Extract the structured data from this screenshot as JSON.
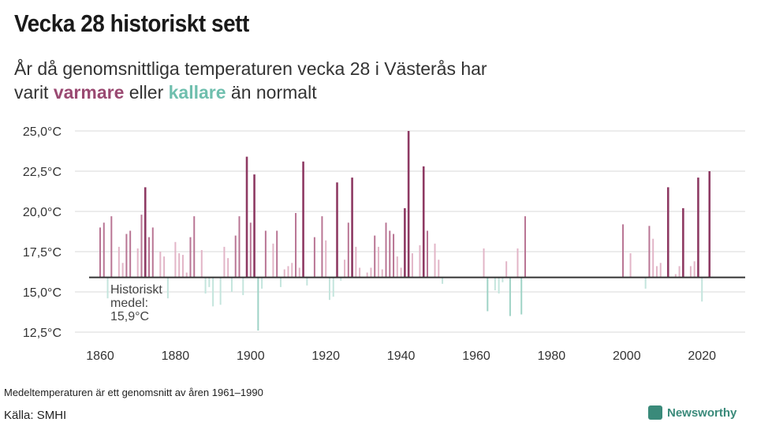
{
  "title": "Vecka 28 historiskt sett",
  "subtitle": {
    "line1": "År då genomsnittliga temperaturen vecka 28 i Västerås har",
    "pre": "varit ",
    "warm": "varmare",
    "mid": " eller ",
    "cold": "kallare",
    "post": " än normalt"
  },
  "note": "Medeltemperaturen är ett genomsnitt av åren 1961–1990",
  "source": "Källa: SMHI",
  "logo": "Newsworthy",
  "colors": {
    "warm": "#8e3a63",
    "warm_light": "#e2b5c7",
    "cold": "#8fcfc0",
    "baseline": "#333333"
  },
  "chart_data": {
    "type": "bar",
    "title": "",
    "xlabel": "",
    "ylabel": "",
    "baseline": 15.9,
    "baseline_label": [
      "Historiskt",
      "medel:",
      "15,9°C"
    ],
    "ylim": [
      12.5,
      25
    ],
    "yticks": [
      "12,5°C",
      "15,0°C",
      "17,5°C",
      "20,0°C",
      "22,5°C",
      "25,0°C"
    ],
    "ytick_values": [
      12.5,
      15,
      17.5,
      20,
      22.5,
      25
    ],
    "xticks": [
      1860,
      1880,
      1900,
      1920,
      1940,
      1960,
      1980,
      2000,
      2020
    ],
    "grid": true,
    "x": [
      1860,
      1861,
      1862,
      1863,
      1865,
      1866,
      1867,
      1868,
      1870,
      1871,
      1872,
      1873,
      1874,
      1876,
      1877,
      1878,
      1880,
      1881,
      1882,
      1883,
      1884,
      1885,
      1887,
      1888,
      1889,
      1890,
      1892,
      1893,
      1894,
      1895,
      1896,
      1897,
      1898,
      1899,
      1900,
      1901,
      1902,
      1903,
      1904,
      1906,
      1907,
      1908,
      1909,
      1910,
      1911,
      1912,
      1913,
      1914,
      1915,
      1917,
      1919,
      1920,
      1921,
      1922,
      1923,
      1924,
      1925,
      1926,
      1927,
      1928,
      1929,
      1931,
      1932,
      1933,
      1934,
      1935,
      1936,
      1937,
      1938,
      1939,
      1940,
      1941,
      1942,
      1943,
      1945,
      1946,
      1947,
      1949,
      1950,
      1951,
      1962,
      1963,
      1965,
      1966,
      1967,
      1968,
      1969,
      1971,
      1972,
      1973,
      1999,
      2001,
      2005,
      2006,
      2007,
      2008,
      2009,
      2011,
      2013,
      2014,
      2015,
      2017,
      2018,
      2019,
      2020,
      2022
    ],
    "values": [
      19.0,
      19.3,
      14.6,
      19.7,
      17.8,
      16.8,
      18.6,
      18.8,
      17.7,
      19.8,
      21.5,
      18.4,
      19.0,
      17.5,
      17.2,
      14.6,
      18.1,
      17.4,
      17.3,
      16.2,
      18.4,
      19.7,
      17.6,
      14.9,
      15.3,
      14.1,
      14.2,
      17.8,
      17.1,
      15.0,
      18.5,
      19.7,
      14.8,
      23.4,
      19.3,
      22.3,
      12.6,
      15.2,
      18.8,
      18.0,
      18.8,
      15.3,
      16.4,
      16.6,
      16.8,
      19.9,
      16.5,
      23.1,
      15.4,
      18.4,
      19.7,
      18.2,
      14.5,
      14.7,
      21.8,
      15.7,
      17.0,
      19.3,
      22.1,
      17.8,
      16.5,
      16.2,
      16.5,
      18.5,
      17.8,
      16.4,
      19.3,
      18.8,
      18.6,
      17.2,
      16.5,
      20.2,
      25.0,
      17.4,
      17.9,
      22.8,
      18.8,
      18.0,
      17.0,
      15.5,
      17.7,
      13.8,
      15.1,
      14.9,
      15.6,
      16.9,
      13.5,
      17.7,
      13.6,
      19.7,
      19.2,
      17.4,
      15.2,
      19.1,
      18.3,
      16.6,
      16.8,
      21.5,
      16.1,
      16.6,
      20.2,
      16.6,
      16.9,
      22.1,
      14.4,
      22.5
    ]
  }
}
